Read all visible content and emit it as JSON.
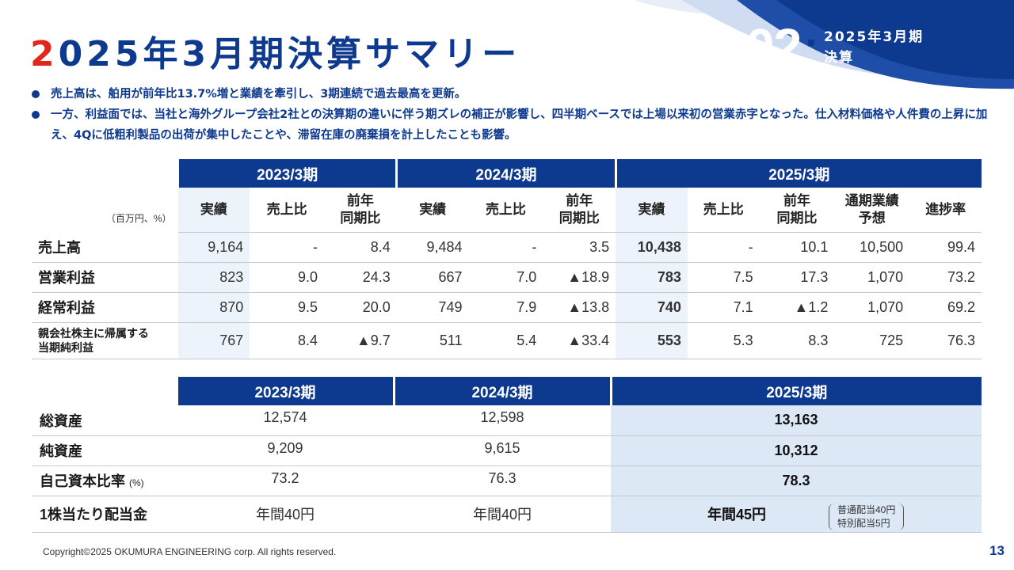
{
  "header": {
    "title_accent": "2",
    "title_rest": "025年3月期決算サマリー",
    "section_number": "02",
    "section_label_line1": "2025年3月期",
    "section_label_line2": "決算"
  },
  "bullets": [
    "売上高は、舶用が前年比13.7%増と業績を牽引し、3期連続で過去最高を更新。",
    "一方、利益面では、当社と海外グループ会社2社との決算期の違いに伴う期ズレの補正が影響し、四半期ベースでは上場以来初の営業赤字となった。仕入材料価格や人件費の上昇に加え、4Qに低粗利製品の出荷が集中したことや、滞留在庫の廃棄損を計上したことも影響。"
  ],
  "table1": {
    "unit": "（百万円、%）",
    "periods": [
      "2023/3期",
      "2024/3期",
      "2025/3期"
    ],
    "col_actual": "実績",
    "col_ratio": "売上比",
    "col_yoy_1": "前年",
    "col_yoy_2": "同期比",
    "col_forecast_1": "通期業績",
    "col_forecast_2": "予想",
    "col_progress": "進捗率",
    "rows": [
      {
        "label": "売上高",
        "v": [
          "9,164",
          "-",
          "8.4",
          "9,484",
          "-",
          "3.5",
          "10,438",
          "-",
          "10.1",
          "10,500",
          "99.4"
        ]
      },
      {
        "label": "営業利益",
        "v": [
          "823",
          "9.0",
          "24.3",
          "667",
          "7.0",
          "▲18.9",
          "783",
          "7.5",
          "17.3",
          "1,070",
          "73.2"
        ]
      },
      {
        "label": "経常利益",
        "v": [
          "870",
          "9.5",
          "20.0",
          "749",
          "7.9",
          "▲13.8",
          "740",
          "7.1",
          "▲1.2",
          "1,070",
          "69.2"
        ]
      },
      {
        "label_1": "親会社株主に帰属する",
        "label_2": "当期純利益",
        "v": [
          "767",
          "8.4",
          "▲9.7",
          "511",
          "5.4",
          "▲33.4",
          "553",
          "5.3",
          "8.3",
          "725",
          "76.3"
        ]
      }
    ]
  },
  "table2": {
    "periods": [
      "2023/3期",
      "2024/3期",
      "2025/3期"
    ],
    "rows": [
      {
        "label": "総資産",
        "v": [
          "12,574",
          "12,598",
          "13,163"
        ]
      },
      {
        "label": "純資産",
        "v": [
          "9,209",
          "9,615",
          "10,312"
        ]
      },
      {
        "label": "自己資本比率",
        "label_small": "(%)",
        "v": [
          "73.2",
          "76.3",
          "78.3"
        ]
      },
      {
        "label": "1株当たり配当金",
        "v": [
          "年間40円",
          "年間40円",
          "年間45円"
        ]
      }
    ],
    "dividend_note_1": "普通配当40円",
    "dividend_note_2": "特別配当5円"
  },
  "footer": {
    "copyright": "Copyright©2025 OKUMURA ENGINEERING corp. All rights reserved.",
    "page": "13"
  },
  "colors": {
    "brand_navy": "#0d3a8e",
    "accent_red": "#e1261c",
    "highlight_light": "#edf3fb",
    "highlight_mid": "#dde8f7"
  }
}
